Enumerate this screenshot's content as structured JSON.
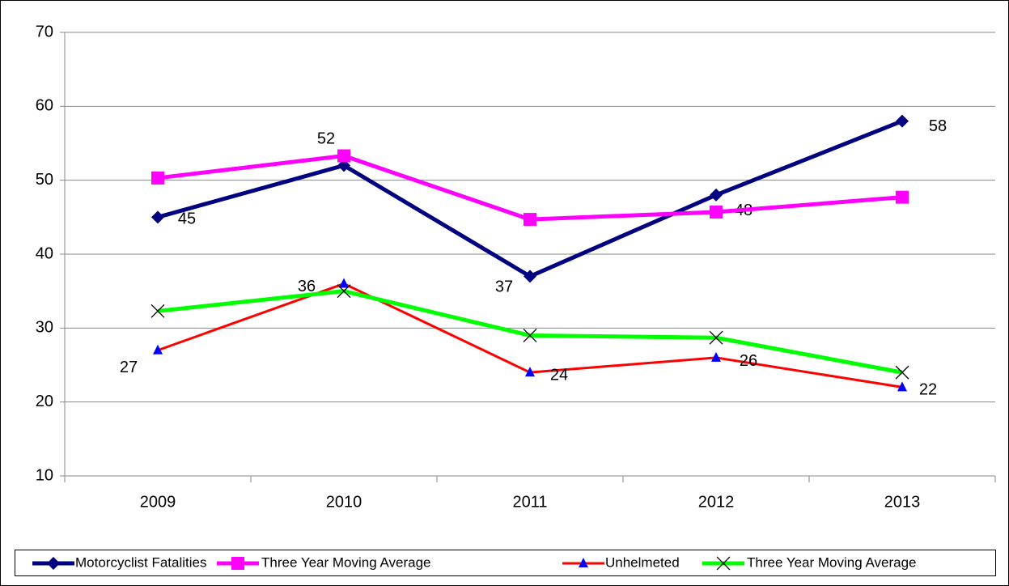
{
  "chart_data": {
    "type": "line",
    "categories": [
      "2009",
      "2010",
      "2011",
      "2012",
      "2013"
    ],
    "series": [
      {
        "name": "Motorcyclist Fatalities",
        "color": "#000080",
        "marker": "diamond",
        "values": [
          45,
          52,
          37,
          48,
          58
        ],
        "labels": true
      },
      {
        "name": "Three Year  Moving Average",
        "color": "#ff00ff",
        "marker": "square",
        "values": [
          50.3,
          53.3,
          44.7,
          45.7,
          47.7
        ],
        "labels": false
      },
      {
        "name": "Unhelmeted",
        "color": "#ff0000",
        "marker": "triangle",
        "values": [
          27,
          36,
          24,
          26,
          22
        ],
        "labels": true
      },
      {
        "name": "Three Year  Moving Average",
        "color": "#00ff00",
        "marker": "x",
        "values": [
          32.3,
          35,
          29,
          28.7,
          24
        ],
        "labels": false
      }
    ],
    "ylim": [
      10,
      70
    ],
    "yticks": [
      10,
      20,
      30,
      40,
      50,
      60,
      70
    ],
    "grid": true,
    "legend": "bottom"
  }
}
